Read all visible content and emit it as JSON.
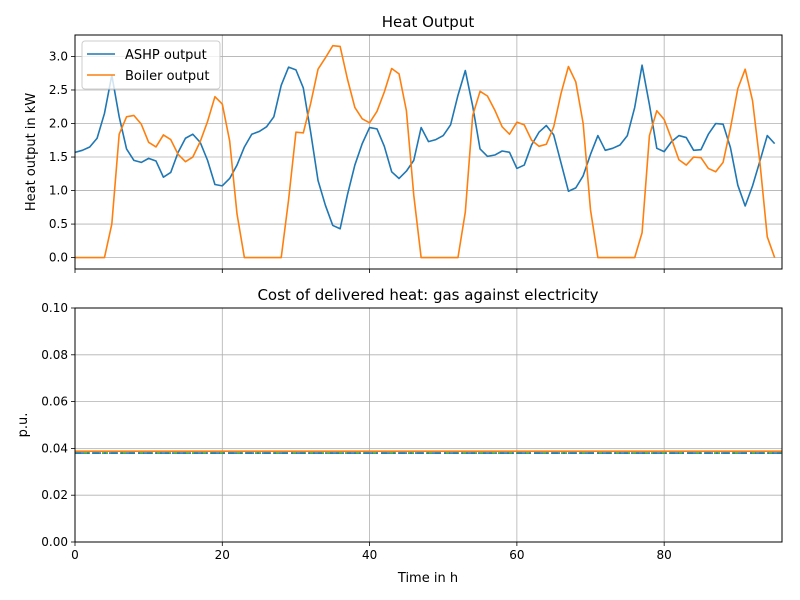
{
  "colors": {
    "blue": "#1f77b4",
    "orange": "#ff7f0e",
    "green": "#2ca02c",
    "grid": "#b0b0b0"
  },
  "chart_data": [
    {
      "type": "line",
      "title": "Heat Output",
      "xlabel": "",
      "ylabel": "Heat output in kW",
      "xlim": [
        0,
        96
      ],
      "ylim": [
        -0.17,
        3.32
      ],
      "xticks": [
        0,
        20,
        40,
        60,
        80
      ],
      "xtick_labels_visible": false,
      "yticks": [
        0.0,
        0.5,
        1.0,
        1.5,
        2.0,
        2.5,
        3.0
      ],
      "ytick_labels": [
        "0.0",
        "0.5",
        "1.0",
        "1.5",
        "2.0",
        "2.5",
        "3.0"
      ],
      "grid": true,
      "legend": "upper-left",
      "x": [
        0,
        1,
        2,
        3,
        4,
        5,
        6,
        7,
        8,
        9,
        10,
        11,
        12,
        13,
        14,
        15,
        16,
        17,
        18,
        19,
        20,
        21,
        22,
        23,
        24,
        25,
        26,
        27,
        28,
        29,
        30,
        31,
        32,
        33,
        34,
        35,
        36,
        37,
        38,
        39,
        40,
        41,
        42,
        43,
        44,
        45,
        46,
        47,
        48,
        49,
        50,
        51,
        52,
        53,
        54,
        55,
        56,
        57,
        58,
        59,
        60,
        61,
        62,
        63,
        64,
        65,
        66,
        67,
        68,
        69,
        70,
        71,
        72,
        73,
        74,
        75,
        76,
        77,
        78,
        79,
        80,
        81,
        82,
        83,
        84,
        85,
        86,
        87,
        88,
        89,
        90,
        91,
        92,
        93,
        94,
        95
      ],
      "series": [
        {
          "name": "ASHP output",
          "color": "#1f77b4",
          "values": [
            1.57,
            1.6,
            1.65,
            1.78,
            2.15,
            2.72,
            2.1,
            1.62,
            1.45,
            1.42,
            1.48,
            1.44,
            1.2,
            1.27,
            1.57,
            1.78,
            1.84,
            1.72,
            1.45,
            1.09,
            1.07,
            1.18,
            1.38,
            1.65,
            1.84,
            1.88,
            1.95,
            2.1,
            2.57,
            2.84,
            2.8,
            2.53,
            1.87,
            1.15,
            0.78,
            0.48,
            0.43,
            0.94,
            1.38,
            1.7,
            1.94,
            1.92,
            1.66,
            1.28,
            1.18,
            1.29,
            1.45,
            1.94,
            1.73,
            1.76,
            1.82,
            1.98,
            2.42,
            2.79,
            2.26,
            1.62,
            1.51,
            1.53,
            1.59,
            1.57,
            1.33,
            1.38,
            1.68,
            1.87,
            1.97,
            1.83,
            1.41,
            0.99,
            1.04,
            1.22,
            1.54,
            1.82,
            1.6,
            1.63,
            1.68,
            1.82,
            2.24,
            2.87,
            2.28,
            1.63,
            1.58,
            1.73,
            1.82,
            1.79,
            1.6,
            1.61,
            1.84,
            2.0,
            1.99,
            1.64,
            1.08,
            0.77,
            1.07,
            1.44,
            1.82,
            1.7
          ]
        },
        {
          "name": "Boiler output",
          "color": "#ff7f0e",
          "values": [
            0.0,
            0.0,
            0.0,
            0.0,
            0.0,
            0.5,
            1.84,
            2.1,
            2.12,
            1.99,
            1.72,
            1.65,
            1.83,
            1.76,
            1.54,
            1.43,
            1.5,
            1.73,
            2.03,
            2.4,
            2.29,
            1.74,
            0.65,
            0.0,
            0.0,
            0.0,
            0.0,
            0.0,
            0.0,
            0.86,
            1.87,
            1.86,
            2.3,
            2.81,
            2.98,
            3.16,
            3.15,
            2.66,
            2.24,
            2.07,
            2.01,
            2.18,
            2.47,
            2.82,
            2.74,
            2.19,
            0.93,
            0.0,
            0.0,
            0.0,
            0.0,
            0.0,
            0.0,
            0.68,
            2.12,
            2.48,
            2.41,
            2.2,
            1.95,
            1.84,
            2.02,
            1.98,
            1.75,
            1.66,
            1.69,
            1.95,
            2.45,
            2.85,
            2.62,
            2.0,
            0.71,
            0.0,
            0.0,
            0.0,
            0.0,
            0.0,
            0.0,
            0.37,
            1.82,
            2.19,
            2.06,
            1.77,
            1.46,
            1.38,
            1.5,
            1.49,
            1.33,
            1.28,
            1.42,
            1.93,
            2.52,
            2.81,
            2.34,
            1.42,
            0.31,
            0.0
          ]
        }
      ]
    },
    {
      "type": "line",
      "title": "Cost of delivered heat: gas against electricity",
      "xlabel": "Time in h",
      "ylabel": "p.u.",
      "xlim": [
        0,
        96
      ],
      "ylim": [
        0.0,
        0.1
      ],
      "xticks": [
        0,
        20,
        40,
        60,
        80
      ],
      "xtick_labels": [
        "0",
        "20",
        "40",
        "60",
        "80"
      ],
      "yticks": [
        0.0,
        0.02,
        0.04,
        0.06,
        0.08,
        0.1
      ],
      "ytick_labels": [
        "0.00",
        "0.02",
        "0.04",
        "0.06",
        "0.08",
        "0.10"
      ],
      "grid": true,
      "series": [
        {
          "color": "#ff7f0e",
          "style": "solid",
          "value": 0.0388
        },
        {
          "color": "#2ca02c",
          "style": "dashed",
          "value": 0.038
        },
        {
          "color": "#1f77b4",
          "style": "dashdot",
          "value": 0.038
        }
      ]
    }
  ]
}
